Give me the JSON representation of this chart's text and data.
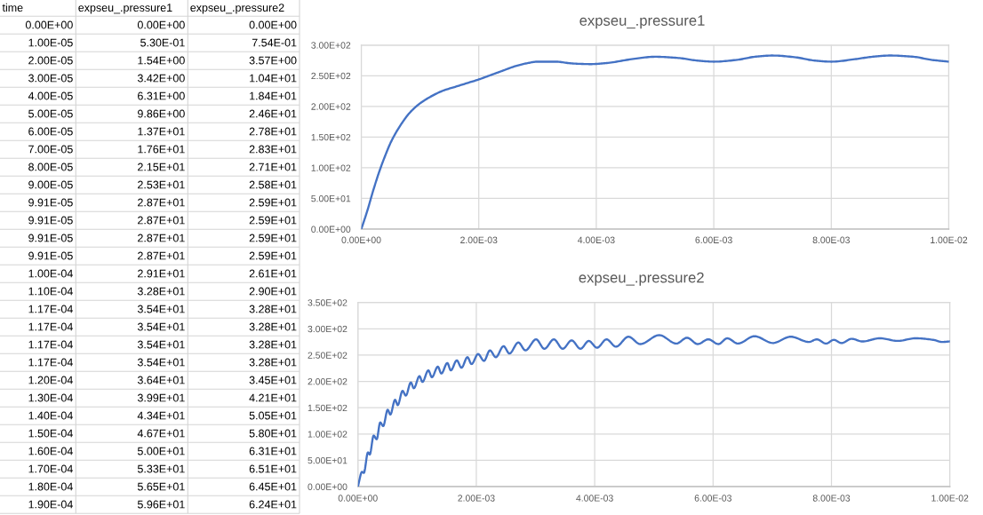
{
  "chart_data": [
    {
      "type": "other",
      "categories": [
        "time",
        "expseu_.pressure1",
        "expseu_.pressure2"
      ],
      "cell_labels": [
        [
          "0.00E+00",
          "0.00E+00",
          "0.00E+00"
        ],
        [
          "1.00E-05",
          "5.30E-01",
          "7.54E-01"
        ],
        [
          "2.00E-05",
          "1.54E+00",
          "3.57E+00"
        ],
        [
          "3.00E-05",
          "3.42E+00",
          "1.04E+01"
        ],
        [
          "4.00E-05",
          "6.31E+00",
          "1.84E+01"
        ],
        [
          "5.00E-05",
          "9.86E+00",
          "2.46E+01"
        ],
        [
          "6.00E-05",
          "1.37E+01",
          "2.78E+01"
        ],
        [
          "7.00E-05",
          "1.76E+01",
          "2.83E+01"
        ],
        [
          "8.00E-05",
          "2.15E+01",
          "2.71E+01"
        ],
        [
          "9.00E-05",
          "2.53E+01",
          "2.58E+01"
        ],
        [
          "9.91E-05",
          "2.87E+01",
          "2.59E+01"
        ],
        [
          "9.91E-05",
          "2.87E+01",
          "2.59E+01"
        ],
        [
          "9.91E-05",
          "2.87E+01",
          "2.59E+01"
        ],
        [
          "9.91E-05",
          "2.87E+01",
          "2.59E+01"
        ],
        [
          "1.00E-04",
          "2.91E+01",
          "2.61E+01"
        ],
        [
          "1.10E-04",
          "3.28E+01",
          "2.90E+01"
        ],
        [
          "1.17E-04",
          "3.54E+01",
          "3.28E+01"
        ],
        [
          "1.17E-04",
          "3.54E+01",
          "3.28E+01"
        ],
        [
          "1.17E-04",
          "3.54E+01",
          "3.28E+01"
        ],
        [
          "1.17E-04",
          "3.54E+01",
          "3.28E+01"
        ],
        [
          "1.20E-04",
          "3.64E+01",
          "3.45E+01"
        ],
        [
          "1.30E-04",
          "3.99E+01",
          "4.21E+01"
        ],
        [
          "1.40E-04",
          "4.34E+01",
          "5.05E+01"
        ],
        [
          "1.50E-04",
          "4.67E+01",
          "5.80E+01"
        ],
        [
          "1.60E-04",
          "5.00E+01",
          "6.31E+01"
        ],
        [
          "1.70E-04",
          "5.33E+01",
          "6.51E+01"
        ],
        [
          "1.80E-04",
          "5.65E+01",
          "6.45E+01"
        ],
        [
          "1.90E-04",
          "5.96E+01",
          "6.24E+01"
        ]
      ]
    },
    {
      "type": "line",
      "title": "expseu_.pressure1",
      "color": "#4472c4",
      "grid": true,
      "x": [
        0,
        0.0001,
        0.0002,
        0.0003,
        0.0004,
        0.0005,
        0.0006,
        0.0007,
        0.0008,
        0.0009,
        0.001,
        0.0012,
        0.0014,
        0.0016,
        0.0018,
        0.002,
        0.0022,
        0.0024,
        0.0026,
        0.0028,
        0.003,
        0.0033,
        0.0036,
        0.0039,
        0.0042,
        0.0046,
        0.005,
        0.0054,
        0.0057,
        0.006,
        0.0064,
        0.0067,
        0.007,
        0.0074,
        0.0077,
        0.008,
        0.0084,
        0.0087,
        0.009,
        0.0094,
        0.0097,
        0.01
      ],
      "values": [
        0,
        29,
        62,
        92,
        118,
        141,
        159,
        174,
        187,
        197,
        205,
        217,
        226,
        232,
        238,
        244,
        251,
        258,
        265,
        270,
        273,
        273,
        270,
        269,
        271,
        277,
        281,
        279,
        275,
        273,
        276,
        281,
        283,
        280,
        275,
        273,
        277,
        281,
        283,
        281,
        276,
        273
      ],
      "xlim": [
        0,
        0.01
      ],
      "ylim": [
        0,
        300
      ],
      "xticks": [
        {
          "value": 0,
          "label": "0.00E+00"
        },
        {
          "value": 0.002,
          "label": "2.00E-03"
        },
        {
          "value": 0.004,
          "label": "4.00E-03"
        },
        {
          "value": 0.006,
          "label": "6.00E-03"
        },
        {
          "value": 0.008,
          "label": "8.00E-03"
        },
        {
          "value": 0.01,
          "label": "1.00E-02"
        }
      ],
      "yticks": [
        {
          "value": 0,
          "label": "0.00E+00"
        },
        {
          "value": 50,
          "label": "5.00E+01"
        },
        {
          "value": 100,
          "label": "1.00E+02"
        },
        {
          "value": 150,
          "label": "1.50E+02"
        },
        {
          "value": 200,
          "label": "2.00E+02"
        },
        {
          "value": 250,
          "label": "2.50E+02"
        },
        {
          "value": 300,
          "label": "3.00E+02"
        }
      ]
    },
    {
      "type": "line",
      "title": "expseu_.pressure2",
      "color": "#4472c4",
      "grid": true,
      "x": [
        0,
        7e-05,
        0.0001,
        0.00017,
        0.0002,
        0.000266,
        0.000317,
        0.000377,
        0.000427,
        0.000503,
        0.000548,
        0.000628,
        0.000673,
        0.000754,
        0.000809,
        0.000894,
        0.000945,
        0.00104,
        0.00109,
        0.00119,
        0.00125,
        0.00135,
        0.00141,
        0.00151,
        0.00157,
        0.00167,
        0.00175,
        0.00185,
        0.00192,
        0.00203,
        0.00213,
        0.00223,
        0.00233,
        0.00246,
        0.00256,
        0.00271,
        0.00283,
        0.00301,
        0.00315,
        0.00331,
        0.00346,
        0.00361,
        0.00376,
        0.0039,
        0.00404,
        0.0042,
        0.00436,
        0.00457,
        0.00477,
        0.00509,
        0.00538,
        0.00556,
        0.00574,
        0.00592,
        0.00609,
        0.00624,
        0.00642,
        0.0067,
        0.00701,
        0.00731,
        0.00762,
        0.00775,
        0.00791,
        0.00804,
        0.00817,
        0.00834,
        0.00852,
        0.00882,
        0.00912,
        0.00942,
        0.00972,
        0.00987,
        0.01
      ],
      "values": [
        0,
        28,
        26,
        65,
        61,
        97,
        90,
        122,
        115,
        146,
        137,
        165,
        155,
        182,
        173,
        198,
        187,
        210,
        199,
        221,
        208,
        228,
        215,
        235,
        221,
        240,
        226,
        246,
        233,
        252,
        239,
        259,
        246,
        267,
        253,
        274,
        259,
        280,
        262,
        280,
        262,
        278,
        262,
        277,
        264,
        280,
        266,
        285,
        271,
        288,
        272,
        283,
        271,
        280,
        271,
        282,
        272,
        286,
        273,
        285,
        275,
        280,
        272,
        279,
        273,
        281,
        276,
        282,
        277,
        282,
        279,
        275,
        276
      ],
      "xlim": [
        0,
        0.01
      ],
      "ylim": [
        0,
        350
      ],
      "xticks": [
        {
          "value": 0,
          "label": "0.00E+00"
        },
        {
          "value": 0.002,
          "label": "2.00E-03"
        },
        {
          "value": 0.004,
          "label": "4.00E-03"
        },
        {
          "value": 0.006,
          "label": "6.00E-03"
        },
        {
          "value": 0.008,
          "label": "8.00E-03"
        },
        {
          "value": 0.01,
          "label": "1.00E-02"
        }
      ],
      "yticks": [
        {
          "value": 0,
          "label": "0.00E+00"
        },
        {
          "value": 50,
          "label": "5.00E+01"
        },
        {
          "value": 100,
          "label": "1.00E+02"
        },
        {
          "value": 150,
          "label": "1.50E+02"
        },
        {
          "value": 200,
          "label": "2.00E+02"
        },
        {
          "value": 250,
          "label": "2.50E+02"
        },
        {
          "value": 300,
          "label": "3.00E+02"
        },
        {
          "value": 350,
          "label": "3.50E+02"
        }
      ]
    }
  ]
}
